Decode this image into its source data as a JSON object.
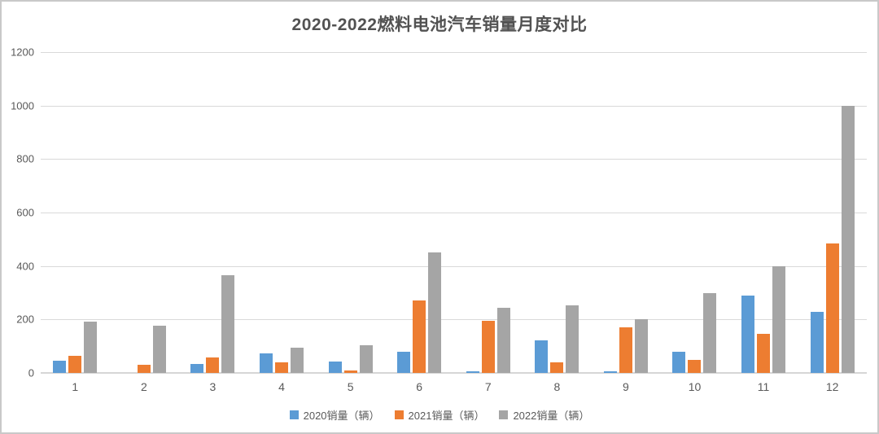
{
  "chart_data": {
    "type": "bar",
    "title": "2020-2022燃料电池汽车销量月度对比",
    "categories": [
      "1",
      "2",
      "3",
      "4",
      "5",
      "6",
      "7",
      "8",
      "9",
      "10",
      "11",
      "12"
    ],
    "series": [
      {
        "name": "2020销量（辆）",
        "color": "#5B9BD5",
        "values": [
          45,
          0,
          35,
          72,
          43,
          79,
          7,
          121,
          7,
          79,
          288,
          227
        ]
      },
      {
        "name": "2021销量（辆）",
        "color": "#ED7D31",
        "values": [
          63,
          30,
          58,
          39,
          10,
          270,
          195,
          39,
          172,
          48,
          145,
          485
        ]
      },
      {
        "name": "2022销量（辆）",
        "color": "#A5A5A5",
        "values": [
          192,
          178,
          367,
          94,
          103,
          452,
          245,
          253,
          200,
          300,
          400,
          1000
        ]
      }
    ],
    "xlabel": "",
    "ylabel": "",
    "ylim": [
      0,
      1200
    ],
    "y_ticks": [
      0,
      200,
      400,
      600,
      800,
      1000,
      1200
    ],
    "grid": "horizontal",
    "legend_position": "bottom",
    "colors": {
      "gridline": "#D9D9D9",
      "axis_text": "#595959",
      "title_text": "#525252",
      "background": "#FFFFFF",
      "frame_border": "#C9C9C9"
    }
  }
}
